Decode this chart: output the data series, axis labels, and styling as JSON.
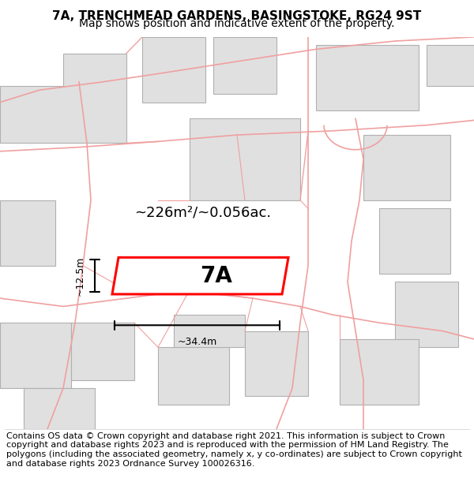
{
  "title": "7A, TRENCHMEAD GARDENS, BASINGSTOKE, RG24 9ST",
  "subtitle": "Map shows position and indicative extent of the property.",
  "footer": "Contains OS data © Crown copyright and database right 2021. This information is subject to Crown copyright and database rights 2023 and is reproduced with the permission of HM Land Registry. The polygons (including the associated geometry, namely x, y co-ordinates) are subject to Crown copyright and database rights 2023 Ordnance Survey 100026316.",
  "bg_color": "#f5f5f5",
  "map_bg": "#ffffff",
  "building_fill": "#e0e0e0",
  "building_edge": "#b0b0b0",
  "road_color": "#f0a0a0",
  "plot_color": "#ff0000",
  "plot_fill": "#ffffff",
  "area_text": "~226m²/~0.056ac.",
  "label_7A": "7A",
  "dim_width": "~34.4m",
  "dim_height": "~12.5m",
  "title_fontsize": 11,
  "subtitle_fontsize": 10,
  "footer_fontsize": 8
}
